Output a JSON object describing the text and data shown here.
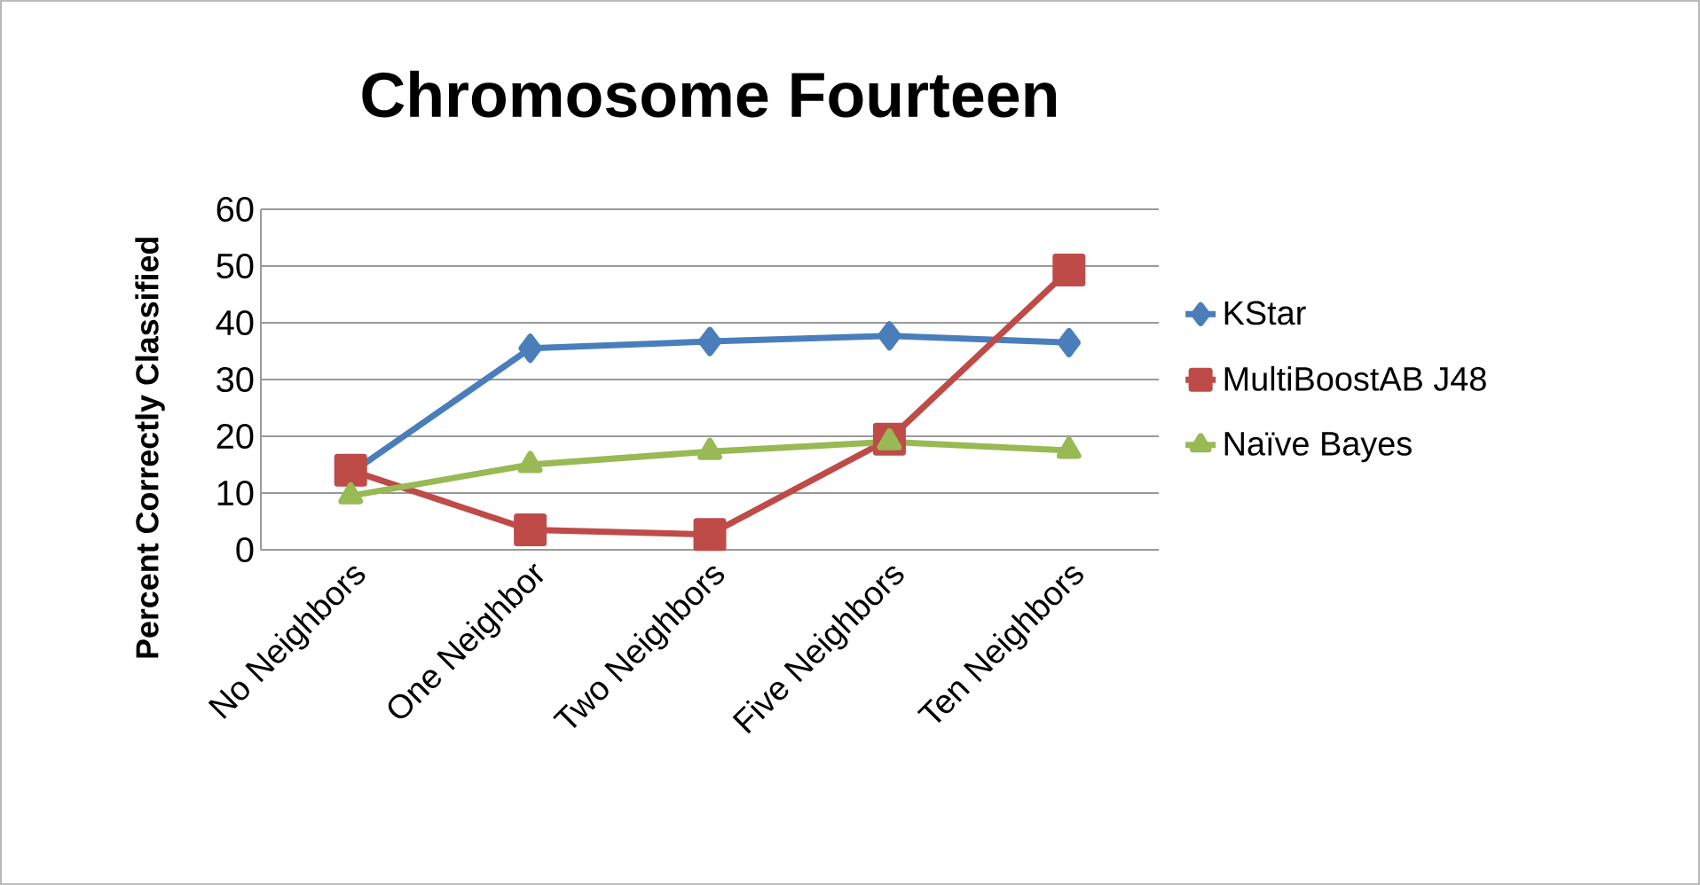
{
  "chart_data": {
    "type": "line",
    "title": "Chromosome Fourteen",
    "ylabel": "Percent Correctly Classified",
    "categories": [
      "No Neighbors",
      "One Neighbor",
      "Two Neighbors",
      "Five Neighbors",
      "Ten Neighbors"
    ],
    "series": [
      {
        "name": "KStar",
        "color": "#4a7ebb",
        "marker": "diamond",
        "values": [
          13.5,
          35.5,
          36.7,
          37.7,
          36.5
        ]
      },
      {
        "name": "MultiBoostAB J48",
        "color": "#be4b48",
        "marker": "square",
        "values": [
          14,
          3.5,
          2.7,
          19.5,
          49.3
        ]
      },
      {
        "name": "Naïve Bayes",
        "color": "#98b954",
        "marker": "triangle",
        "values": [
          9.5,
          15,
          17.3,
          19,
          17.5
        ]
      }
    ],
    "ylim": [
      0,
      60
    ],
    "yticks": [
      0,
      10,
      20,
      30,
      40,
      50,
      60
    ],
    "grid": "y",
    "legend": "right",
    "line_style": "solid"
  }
}
